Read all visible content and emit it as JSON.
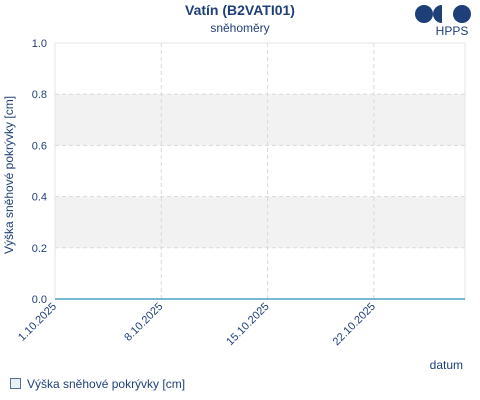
{
  "header": {
    "title": "Vatín (B2VATI01)",
    "subtitle": "sněhoměry",
    "logo_text": "HPPS"
  },
  "legend": {
    "label": "Výška sněhové pokrývky [cm]"
  },
  "colors": {
    "text": "#1f3f78",
    "band": "#f2f2f2",
    "grid": "#d9d9d9",
    "series": "#4aa3c8"
  },
  "chart_data": {
    "type": "line",
    "title": "Vatín (B2VATI01)",
    "subtitle": "sněhoměry",
    "xlabel": "datum",
    "ylabel": "Výška sněhové pokrývky [cm]",
    "ylim": [
      0,
      1
    ],
    "yticks": [
      "0.0",
      "0.2",
      "0.4",
      "0.6",
      "0.8",
      "1.0"
    ],
    "xlim": [
      "2025-10-01",
      "2025-10-28"
    ],
    "xticks": [
      {
        "date": "2025-10-01",
        "label": "1.10.2025"
      },
      {
        "date": "2025-10-08",
        "label": "8.10.2025"
      },
      {
        "date": "2025-10-15",
        "label": "15.10.2025"
      },
      {
        "date": "2025-10-22",
        "label": "22.10.2025"
      }
    ],
    "grid": true,
    "legend_position": "bottom-left",
    "series": [
      {
        "name": "Výška sněhové pokrývky [cm]",
        "x": [
          "2025-10-01",
          "2025-10-28"
        ],
        "y": [
          0,
          0
        ]
      }
    ]
  }
}
